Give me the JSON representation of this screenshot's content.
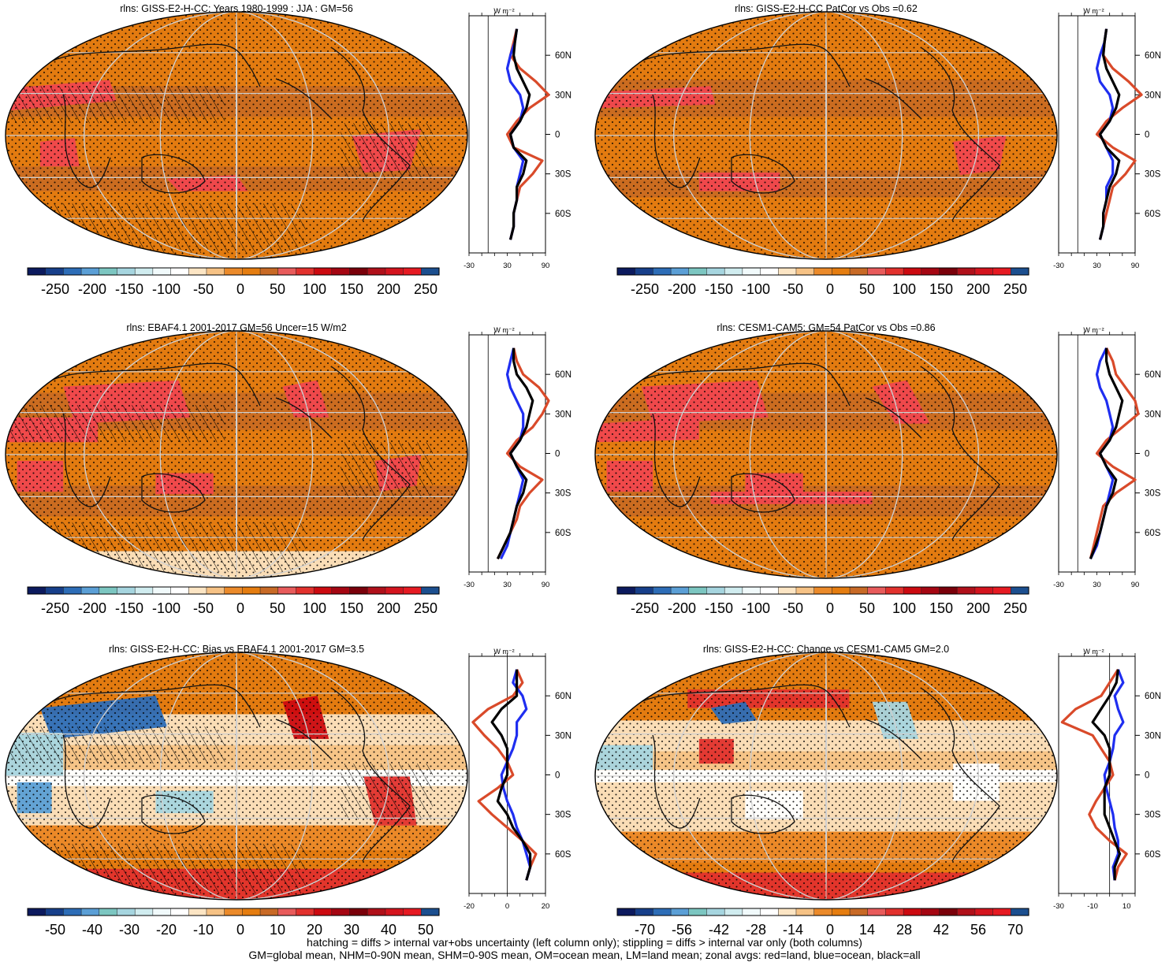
{
  "colors": {
    "div25": [
      "#0c1a5e",
      "#173f8a",
      "#2d6db7",
      "#5b9fd6",
      "#7cc6c1",
      "#a6d5df",
      "#d0ecef",
      "#f1fafb",
      "#ffffff",
      "#fce5c4",
      "#f6c285",
      "#eb8a2a",
      "#e57d10",
      "#c86a26",
      "#e85b5b",
      "#e2312d",
      "#cc0a10",
      "#a50612",
      "#7a000a",
      "#b0101a",
      "#d4141e",
      "#e61a22",
      "#1c4f8f"
    ],
    "land": "#d94a2a",
    "ocean": "#1f2ef0",
    "all": "#000000",
    "grid": "#d0d0d0",
    "base_orange": "#e37b10",
    "dark_orange": "#c96b22",
    "pink_red": "#f0474e",
    "pale": "#fbe3c0",
    "light_blue": "#bfe2ec"
  },
  "panels": [
    {
      "title": "rlns: GISS-E2-H-CC: Years 1980-1999 : JJA : GM=56",
      "cbar_labels": [
        "-250",
        "-200",
        "-150",
        "-100",
        "-50",
        "0",
        "50",
        "100",
        "150",
        "200",
        "250"
      ],
      "zonal_ticks": [
        "-30",
        "30",
        "90"
      ],
      "lat_labels": [
        "60N",
        "30N",
        "0",
        "30S",
        "60S"
      ],
      "unit": "W m⁻²"
    },
    {
      "title": "rlns: GISS-E2-H-CC PatCor vs Obs =0.62",
      "cbar_labels": [
        "-250",
        "-200",
        "-150",
        "-100",
        "-50",
        "0",
        "50",
        "100",
        "150",
        "200",
        "250"
      ],
      "zonal_ticks": [
        "-30",
        "30",
        "90"
      ],
      "lat_labels": [
        "60N",
        "30N",
        "0",
        "30S",
        "60S"
      ],
      "unit": "W m⁻²"
    },
    {
      "title": "rlns: EBAF4.1 2001-2017 GM=56 Uncer=15 W/m2",
      "cbar_labels": [
        "-250",
        "-200",
        "-150",
        "-100",
        "-50",
        "0",
        "50",
        "100",
        "150",
        "200",
        "250"
      ],
      "zonal_ticks": [
        "-30",
        "30",
        "90"
      ],
      "lat_labels": [
        "60N",
        "30N",
        "0",
        "30S",
        "60S"
      ],
      "unit": "W m⁻²"
    },
    {
      "title": "rlns: CESM1-CAM5: GM=54 PatCor vs Obs =0.86",
      "cbar_labels": [
        "-250",
        "-200",
        "-150",
        "-100",
        "-50",
        "0",
        "50",
        "100",
        "150",
        "200",
        "250"
      ],
      "zonal_ticks": [
        "-30",
        "30",
        "90"
      ],
      "lat_labels": [
        "60N",
        "30N",
        "0",
        "30S",
        "60S"
      ],
      "unit": "W m⁻²"
    },
    {
      "title": "rlns: GISS-E2-H-CC: Bias vs EBAF4.1 2001-2017 GM=3.5",
      "cbar_labels": [
        "-50",
        "-40",
        "-30",
        "-20",
        "-10",
        "0",
        "10",
        "20",
        "30",
        "40",
        "50"
      ],
      "zonal_ticks": [
        "-20",
        "0",
        "20"
      ],
      "lat_labels": [
        "60N",
        "30N",
        "0",
        "30S",
        "60S"
      ],
      "unit": "W m⁻²"
    },
    {
      "title": "rlns: GISS-E2-H-CC: Change vs CESM1-CAM5 GM=2.0",
      "cbar_labels": [
        "-70",
        "-56",
        "-42",
        "-28",
        "-14",
        "0",
        "14",
        "28",
        "42",
        "56",
        "70"
      ],
      "zonal_ticks": [
        "-30",
        "-10",
        "10"
      ],
      "lat_labels": [
        "60N",
        "30N",
        "0",
        "30S",
        "60S"
      ],
      "unit": "W m⁻²"
    }
  ],
  "footer": {
    "line1": "hatching = diffs > internal var+obs uncertainty (left column only); stippling = diffs > internal var only (both columns)",
    "line2": "GM=global mean, NHM=0-90N mean, SHM=0-90S mean, OM=ocean mean, LM=land mean; zonal avgs: red=land, blue=ocean, black=all"
  },
  "chart_data": [
    {
      "type": "heatmap",
      "title": "rlns: GISS-E2-H-CC: Years 1980-1999 : JJA : GM=56",
      "colorbar_levels": [
        -250,
        250
      ],
      "zonal_xlim": [
        -30,
        90
      ],
      "zonal_lat": [
        80,
        70,
        60,
        50,
        40,
        30,
        20,
        10,
        0,
        -10,
        -20,
        -30,
        -40,
        -50,
        -60,
        -70,
        -80
      ],
      "zonal_land": [
        45,
        40,
        35,
        50,
        75,
        95,
        65,
        45,
        30,
        40,
        85,
        70,
        50,
        45,
        40,
        40,
        35
      ],
      "zonal_ocean": [
        45,
        42,
        35,
        30,
        35,
        50,
        55,
        50,
        35,
        40,
        55,
        50,
        45,
        45,
        40,
        40,
        35
      ],
      "zonal_all": [
        45,
        42,
        40,
        45,
        55,
        65,
        60,
        50,
        35,
        40,
        60,
        55,
        45,
        45,
        40,
        40,
        35
      ]
    },
    {
      "type": "heatmap",
      "title": "rlns: GISS-E2-H-CC PatCor vs Obs =0.62",
      "colorbar_levels": [
        -250,
        250
      ],
      "zonal_xlim": [
        -30,
        90
      ],
      "zonal_lat": [
        80,
        70,
        60,
        50,
        40,
        30,
        20,
        10,
        0,
        -10,
        -20,
        -30,
        -40,
        -50,
        -60,
        -70,
        -80
      ],
      "zonal_land": [
        45,
        42,
        40,
        55,
        80,
        100,
        70,
        45,
        30,
        55,
        90,
        75,
        55,
        50,
        45,
        40,
        35
      ],
      "zonal_ocean": [
        45,
        42,
        35,
        30,
        35,
        50,
        55,
        50,
        35,
        45,
        55,
        55,
        45,
        45,
        40,
        40,
        35
      ],
      "zonal_all": [
        45,
        42,
        40,
        45,
        55,
        65,
        60,
        50,
        35,
        45,
        65,
        60,
        50,
        45,
        40,
        40,
        35
      ]
    },
    {
      "type": "heatmap",
      "title": "rlns: EBAF4.1 2001-2017 GM=56 Uncer=15 W/m2",
      "colorbar_levels": [
        -250,
        250
      ],
      "zonal_xlim": [
        -30,
        90
      ],
      "zonal_lat": [
        80,
        70,
        60,
        50,
        40,
        30,
        20,
        10,
        0,
        -10,
        -20,
        -30,
        -40,
        -50,
        -60,
        -70,
        -80
      ],
      "zonal_land": [
        40,
        45,
        55,
        80,
        95,
        85,
        70,
        45,
        30,
        50,
        85,
        65,
        50,
        45,
        35,
        25,
        15
      ],
      "zonal_ocean": [
        40,
        35,
        30,
        35,
        45,
        55,
        55,
        50,
        35,
        45,
        55,
        50,
        45,
        40,
        35,
        30,
        20
      ],
      "zonal_all": [
        40,
        40,
        45,
        60,
        70,
        65,
        60,
        50,
        35,
        45,
        60,
        55,
        45,
        40,
        35,
        25,
        15
      ]
    },
    {
      "type": "heatmap",
      "title": "rlns: CESM1-CAM5: GM=54 PatCor vs Obs =0.86",
      "colorbar_levels": [
        -250,
        250
      ],
      "zonal_xlim": [
        -30,
        90
      ],
      "zonal_lat": [
        80,
        70,
        60,
        50,
        40,
        30,
        20,
        10,
        0,
        -10,
        -20,
        -30,
        -40,
        -50,
        -60,
        -70,
        -80
      ],
      "zonal_land": [
        45,
        55,
        60,
        75,
        90,
        95,
        70,
        45,
        30,
        55,
        90,
        60,
        40,
        35,
        30,
        25,
        20
      ],
      "zonal_ocean": [
        45,
        35,
        30,
        35,
        45,
        50,
        55,
        50,
        35,
        45,
        55,
        50,
        45,
        40,
        35,
        30,
        20
      ],
      "zonal_all": [
        45,
        45,
        50,
        60,
        70,
        65,
        60,
        50,
        35,
        45,
        60,
        55,
        45,
        40,
        35,
        28,
        20
      ]
    },
    {
      "type": "heatmap",
      "title": "rlns: GISS-E2-H-CC: Bias vs EBAF4.1 2001-2017 GM=3.5",
      "colorbar_levels": [
        -50,
        50
      ],
      "zonal_xlim": [
        -20,
        20
      ],
      "zonal_lat": [
        80,
        70,
        60,
        50,
        40,
        30,
        20,
        10,
        0,
        -10,
        -20,
        -30,
        -40,
        -50,
        -60,
        -70,
        -80
      ],
      "zonal_land": [
        5,
        8,
        3,
        -10,
        -18,
        -12,
        -5,
        0,
        3,
        -5,
        -15,
        -8,
        0,
        8,
        15,
        12,
        10
      ],
      "zonal_ocean": [
        5,
        3,
        8,
        10,
        5,
        5,
        3,
        0,
        -3,
        -2,
        0,
        3,
        5,
        8,
        10,
        12,
        10
      ],
      "zonal_all": [
        5,
        5,
        5,
        -3,
        -8,
        -3,
        0,
        0,
        0,
        -3,
        -5,
        0,
        3,
        8,
        12,
        12,
        10
      ]
    },
    {
      "type": "heatmap",
      "title": "rlns: GISS-E2-H-CC: Change vs CESM1-CAM5 GM=2.0",
      "colorbar_levels": [
        -70,
        70
      ],
      "zonal_xlim": [
        -30,
        15
      ],
      "zonal_lat": [
        80,
        70,
        60,
        50,
        40,
        30,
        20,
        10,
        0,
        -10,
        -20,
        -30,
        -40,
        -50,
        -60,
        -70,
        -80
      ],
      "zonal_land": [
        5,
        0,
        -5,
        -20,
        -28,
        -10,
        -5,
        0,
        2,
        -3,
        -8,
        -12,
        -8,
        0,
        10,
        5,
        3
      ],
      "zonal_ocean": [
        5,
        8,
        3,
        5,
        8,
        3,
        2,
        0,
        -3,
        -2,
        0,
        2,
        3,
        5,
        5,
        2,
        3
      ],
      "zonal_all": [
        5,
        4,
        0,
        -5,
        -10,
        -3,
        0,
        0,
        0,
        -3,
        -3,
        -3,
        0,
        3,
        6,
        3,
        3
      ]
    }
  ]
}
